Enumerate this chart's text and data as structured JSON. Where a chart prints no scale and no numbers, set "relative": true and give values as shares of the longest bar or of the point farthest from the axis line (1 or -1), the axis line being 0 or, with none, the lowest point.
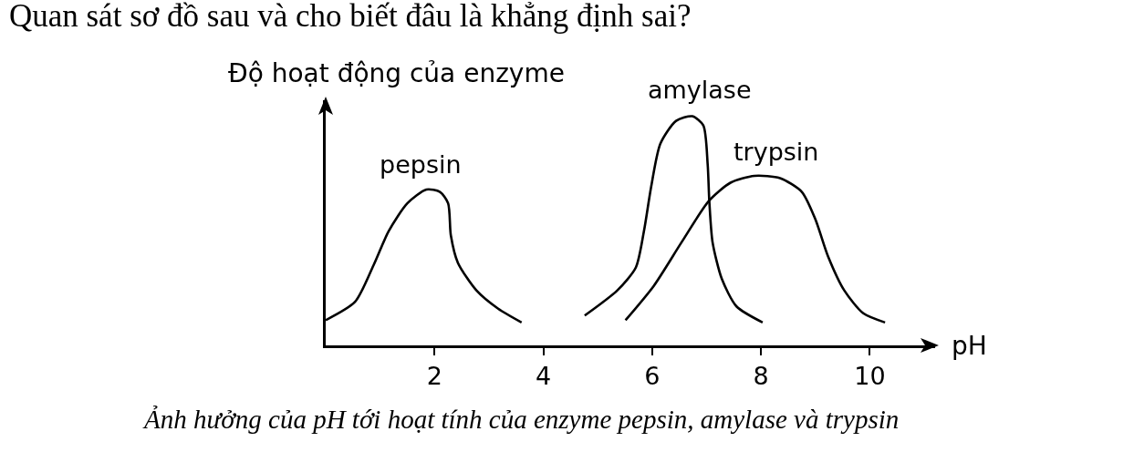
{
  "chart_data": {
    "type": "line",
    "title": "Quan sát sơ đồ sau và cho biết đâu là khẳng định sai?",
    "ylabel": "Độ hoạt động của enzyme",
    "xlabel": "pH",
    "annotations": [
      "Ảnh hưởng của pH tới hoạt tính của enzyme pepsin, amylase và trypsin"
    ],
    "relative": true,
    "xlim": [
      0,
      11.2
    ],
    "xticks": [
      2,
      4,
      6,
      8,
      10
    ],
    "tick_labels": "x",
    "line_style": "solid",
    "series": [
      {
        "name": "pepsin",
        "color": "#000000",
        "x": [
          0,
          0.54,
          0.88,
          1.16,
          1.5,
          1.85,
          2.1,
          2.25,
          2.3,
          2.43,
          2.77,
          3.17,
          3.6
        ],
        "values": [
          0.11,
          0.19,
          0.35,
          0.5,
          0.62,
          0.68,
          0.67,
          0.62,
          0.48,
          0.36,
          0.24,
          0.16,
          0.1
        ]
      },
      {
        "name": "amylase",
        "color": "#000000",
        "x": [
          4.76,
          5.36,
          5.7,
          5.85,
          5.98,
          6.15,
          6.44,
          6.74,
          6.94,
          7.02,
          7.05,
          7.11,
          7.28,
          7.55,
          8.03
        ],
        "values": [
          0.13,
          0.24,
          0.34,
          0.5,
          0.69,
          0.88,
          0.98,
          1,
          0.96,
          0.79,
          0.63,
          0.45,
          0.29,
          0.17,
          0.1
        ]
      },
      {
        "name": "trypsin",
        "color": "#000000",
        "x": [
          5.51,
          6.03,
          6.54,
          7.04,
          7.44,
          7.88,
          8.35,
          8.75,
          9,
          9.23,
          9.53,
          9.88,
          10.28
        ],
        "values": [
          0.11,
          0.26,
          0.45,
          0.63,
          0.71,
          0.74,
          0.73,
          0.67,
          0.55,
          0.39,
          0.24,
          0.14,
          0.1
        ]
      }
    ]
  }
}
